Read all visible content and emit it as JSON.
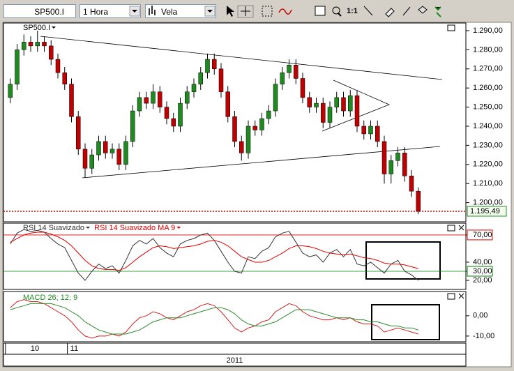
{
  "toolbar": {
    "symbol": "SP500.I",
    "period": "1 Hora",
    "style": "Vela",
    "zoom": "1:1"
  },
  "chart_data": [
    {
      "type": "candlestick",
      "title": "SP500.I",
      "up_color": "#1f8a1f",
      "down_color": "#c00000",
      "ylim": [
        1190,
        1294
      ],
      "yticks": [
        {
          "value": 1290,
          "label": "1.290,00"
        },
        {
          "value": 1280,
          "label": "1.280,00"
        },
        {
          "value": 1270,
          "label": "1.270,00"
        },
        {
          "value": 1260,
          "label": "1.260,00"
        },
        {
          "value": 1250,
          "label": "1.250,00"
        },
        {
          "value": 1240,
          "label": "1.240,00"
        },
        {
          "value": 1230,
          "label": "1.230,00"
        },
        {
          "value": 1220,
          "label": "1.220,00"
        },
        {
          "value": 1210,
          "label": "1.210,00"
        },
        {
          "value": 1200,
          "label": "1.200,00"
        }
      ],
      "last_price": {
        "value": 1195.49,
        "label": "1.195,49"
      },
      "last_price_color": "#d00000",
      "open": [
        1255,
        1262,
        1280,
        1284,
        1282,
        1284,
        1282,
        1275,
        1268,
        1262,
        1245,
        1228,
        1218,
        1225,
        1232,
        1226,
        1228,
        1220,
        1232,
        1248,
        1255,
        1252,
        1258,
        1250,
        1244,
        1240,
        1252,
        1258,
        1262,
        1268,
        1275,
        1270,
        1258,
        1245,
        1232,
        1226,
        1240,
        1238,
        1244,
        1248,
        1262,
        1268,
        1272,
        1265,
        1255,
        1250,
        1252,
        1242,
        1250,
        1255,
        1248,
        1256,
        1240,
        1236,
        1240,
        1232,
        1215,
        1222,
        1226,
        1214,
        1206
      ],
      "high": [
        1265,
        1283,
        1288,
        1287,
        1290,
        1287,
        1285,
        1278,
        1271,
        1265,
        1248,
        1231,
        1228,
        1235,
        1235,
        1231,
        1231,
        1235,
        1251,
        1258,
        1258,
        1262,
        1261,
        1253,
        1247,
        1255,
        1261,
        1265,
        1271,
        1278,
        1278,
        1273,
        1261,
        1248,
        1235,
        1243,
        1243,
        1247,
        1251,
        1265,
        1271,
        1275,
        1275,
        1268,
        1258,
        1255,
        1255,
        1253,
        1258,
        1258,
        1259,
        1259,
        1243,
        1243,
        1243,
        1235,
        1225,
        1229,
        1229,
        1217,
        1208
      ],
      "low": [
        1252,
        1259,
        1277,
        1279,
        1279,
        1279,
        1272,
        1265,
        1259,
        1242,
        1225,
        1213,
        1215,
        1222,
        1223,
        1223,
        1217,
        1217,
        1229,
        1245,
        1249,
        1249,
        1247,
        1241,
        1237,
        1237,
        1249,
        1255,
        1259,
        1265,
        1267,
        1255,
        1242,
        1229,
        1222,
        1223,
        1235,
        1235,
        1241,
        1245,
        1259,
        1265,
        1262,
        1252,
        1247,
        1247,
        1239,
        1239,
        1247,
        1245,
        1245,
        1237,
        1233,
        1233,
        1229,
        1210,
        1210,
        1219,
        1211,
        1203,
        1194
      ],
      "close": [
        1262,
        1280,
        1284,
        1282,
        1284,
        1282,
        1275,
        1268,
        1262,
        1245,
        1228,
        1218,
        1225,
        1232,
        1226,
        1228,
        1220,
        1232,
        1248,
        1255,
        1252,
        1258,
        1250,
        1244,
        1240,
        1252,
        1258,
        1262,
        1268,
        1275,
        1270,
        1258,
        1245,
        1232,
        1226,
        1240,
        1238,
        1244,
        1248,
        1262,
        1268,
        1272,
        1265,
        1255,
        1250,
        1252,
        1242,
        1250,
        1255,
        1248,
        1256,
        1240,
        1236,
        1240,
        1232,
        1215,
        1222,
        1226,
        1214,
        1206,
        1195.49
      ]
    },
    {
      "type": "line",
      "ylim": [
        10,
        83
      ],
      "yticks": [
        {
          "value": 70,
          "label": "70,00"
        },
        {
          "value": 40,
          "label": "40,00"
        },
        {
          "value": 30,
          "label": "30,00"
        },
        {
          "value": 20,
          "label": "20,00"
        }
      ],
      "levels": [
        70,
        30
      ],
      "level_colors": [
        "#e00000",
        "#008000"
      ],
      "series": [
        {
          "name": "RSI 14 Suavizado",
          "color": "#333333",
          "values": [
            60,
            72,
            76,
            74,
            75,
            73,
            66,
            60,
            56,
            42,
            28,
            20,
            30,
            38,
            33,
            36,
            28,
            42,
            58,
            64,
            60,
            66,
            56,
            50,
            46,
            60,
            64,
            66,
            70,
            72,
            64,
            52,
            40,
            30,
            28,
            46,
            44,
            52,
            56,
            68,
            72,
            74,
            62,
            50,
            46,
            48,
            40,
            50,
            54,
            46,
            54,
            38,
            36,
            40,
            34,
            28,
            38,
            42,
            30,
            26,
            20
          ]
        },
        {
          "name": "RSI 14 Suavizado MA 9",
          "color": "#e00000",
          "values": [
            62,
            66,
            70,
            72,
            73,
            73,
            71,
            68,
            64,
            58,
            50,
            42,
            36,
            33,
            32,
            32,
            31,
            34,
            40,
            46,
            51,
            56,
            58,
            57,
            55,
            56,
            57,
            58,
            60,
            63,
            64,
            62,
            58,
            52,
            46,
            43,
            40,
            40,
            42,
            46,
            50,
            55,
            58,
            58,
            57,
            55,
            52,
            50,
            49,
            48,
            49,
            47,
            45,
            44,
            42,
            39,
            38,
            38,
            37,
            35,
            33
          ]
        }
      ]
    },
    {
      "type": "line",
      "title": "MACD 26; 12; 9",
      "title_color": "#1f8a1f",
      "ylim": [
        -12.8,
        12
      ],
      "yticks": [
        {
          "value": 0,
          "label": "0,00"
        },
        {
          "value": -10,
          "label": "-10,00"
        }
      ],
      "xticks": [
        {
          "value": -0.7,
          "label": "10"
        },
        {
          "value": 8.4,
          "label": "11"
        }
      ],
      "xlim": [
        -1,
        67
      ],
      "year": "2011",
      "series": [
        {
          "color": "#d02020",
          "values": [
            4,
            7,
            8,
            7,
            7,
            6,
            4,
            2,
            0,
            -3,
            -7,
            -10,
            -11,
            -10,
            -10,
            -9,
            -10,
            -8,
            -4,
            -1,
            0,
            2,
            1,
            -1,
            -2,
            0,
            2,
            3,
            5,
            6,
            5,
            2,
            -2,
            -6,
            -8,
            -6,
            -5,
            -3,
            -2,
            2,
            4,
            6,
            5,
            2,
            0,
            -1,
            -2,
            -2,
            -1,
            -2,
            -1,
            -3,
            -4,
            -4,
            -5,
            -8,
            -7,
            -6,
            -7,
            -8,
            -9
          ]
        },
        {
          "color": "#2a8a2a",
          "values": [
            3,
            4,
            5,
            6,
            6,
            6,
            6,
            5,
            4,
            2,
            0,
            -3,
            -5,
            -7,
            -8,
            -9,
            -9,
            -9,
            -8,
            -7,
            -5,
            -3,
            -2,
            -1,
            -1,
            -1,
            0,
            1,
            2,
            3,
            4,
            4,
            3,
            1,
            -2,
            -4,
            -5,
            -5,
            -4,
            -3,
            -1,
            1,
            3,
            3,
            3,
            2,
            1,
            0,
            -1,
            -1,
            -1,
            -2,
            -2,
            -3,
            -3,
            -4,
            -5,
            -5,
            -6,
            -6,
            -7
          ]
        }
      ]
    }
  ]
}
